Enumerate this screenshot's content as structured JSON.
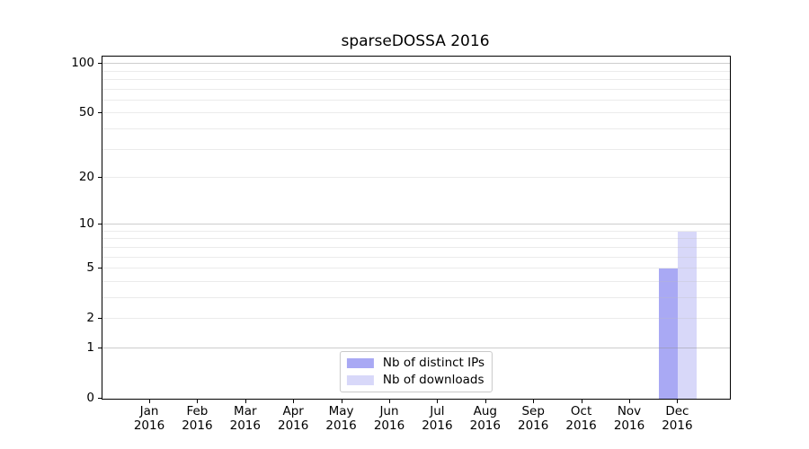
{
  "chart_data": {
    "type": "bar",
    "title": "sparseDOSSA 2016",
    "categories": [
      "Jan 2016",
      "Feb 2016",
      "Mar 2016",
      "Apr 2016",
      "May 2016",
      "Jun 2016",
      "Jul 2016",
      "Aug 2016",
      "Sep 2016",
      "Oct 2016",
      "Nov 2016",
      "Dec 2016"
    ],
    "x_axis": {
      "months": [
        "Jan",
        "Feb",
        "Mar",
        "Apr",
        "May",
        "Jun",
        "Jul",
        "Aug",
        "Sep",
        "Oct",
        "Nov",
        "Dec"
      ],
      "year": "2016"
    },
    "series": [
      {
        "name": "Nb of distinct IPs",
        "color": "#a9a9f4",
        "values": [
          0,
          0,
          0,
          0,
          0,
          0,
          0,
          0,
          0,
          0,
          0,
          5
        ]
      },
      {
        "name": "Nb of downloads",
        "color": "#d8d8f9",
        "values": [
          0,
          0,
          0,
          0,
          0,
          0,
          0,
          0,
          0,
          0,
          0,
          9
        ]
      }
    ],
    "y_axis": {
      "scale": "log1p",
      "min": 0,
      "max": 110.6,
      "ticks": [
        0,
        1,
        2,
        5,
        10,
        20,
        50,
        100
      ],
      "grid_major": [
        1,
        10,
        100
      ],
      "grid_minor": [
        2,
        3,
        4,
        5,
        6,
        7,
        8,
        9,
        20,
        30,
        40,
        50,
        60,
        70,
        80,
        90
      ]
    },
    "legend": {
      "position": "lower center",
      "entries": [
        "Nb of distinct IPs",
        "Nb of downloads"
      ]
    },
    "grid": true,
    "colors": {
      "grid_major": "#d3d3d3",
      "grid_minor": "#eaeaea",
      "axis_frame": "#000000",
      "background": "#ffffff"
    }
  }
}
